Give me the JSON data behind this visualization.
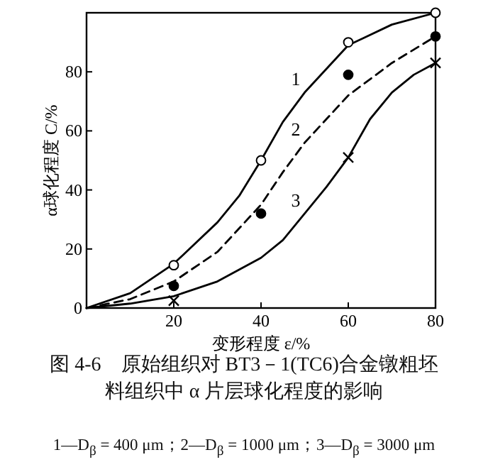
{
  "chart_data": {
    "type": "line",
    "title": "图 4-6　原始组织对 BT3－1(TC6)合金镦粗坯料组织中 α 片层球化程度的影响",
    "xlabel": "变形程度 ε/%",
    "ylabel": "α球化程度 C/%",
    "xlim": [
      0,
      80
    ],
    "ylim": [
      0,
      100
    ],
    "xticks": [
      20,
      40,
      60,
      80
    ],
    "yticks": [
      0,
      20,
      40,
      60,
      80
    ],
    "grid": false,
    "series": [
      {
        "type": "line",
        "name": "1",
        "color": "#000000",
        "line_style": "solid",
        "marker": "none",
        "x": [
          0,
          10,
          20,
          30,
          35,
          40,
          45,
          50,
          55,
          60,
          70,
          80
        ],
        "values": [
          0,
          5,
          15,
          29,
          38,
          50,
          63,
          73,
          81,
          89,
          96,
          100
        ]
      },
      {
        "type": "line",
        "name": "2",
        "color": "#000000",
        "line_style": "dashed",
        "marker": "none",
        "x": [
          0,
          10,
          20,
          30,
          40,
          45,
          50,
          55,
          60,
          70,
          80
        ],
        "values": [
          0,
          3,
          9,
          19,
          35,
          46,
          56,
          64,
          72,
          83,
          92
        ]
      },
      {
        "type": "line",
        "name": "3",
        "color": "#000000",
        "line_style": "solid",
        "marker": "none",
        "x": [
          0,
          10,
          20,
          30,
          40,
          45,
          50,
          55,
          60,
          65,
          70,
          75,
          80
        ],
        "values": [
          0,
          1.5,
          4,
          9,
          17,
          23,
          32,
          41,
          51,
          64,
          73,
          79,
          83
        ]
      },
      {
        "type": "scatter",
        "color": "#ffffff",
        "marker": "circle",
        "x": [
          20,
          40,
          60,
          80
        ],
        "values": [
          14.5,
          50,
          90,
          100
        ]
      },
      {
        "type": "scatter",
        "color": "#000000",
        "marker": "circle",
        "x": [
          20,
          40,
          60,
          80
        ],
        "values": [
          7.5,
          32,
          79,
          92
        ]
      },
      {
        "type": "scatter",
        "color": "#000000",
        "marker": "cross",
        "x": [
          20,
          60,
          80
        ],
        "values": [
          2.5,
          51,
          83
        ]
      }
    ],
    "annotations": [
      "1—D$_{β}$ = 400 μm；2—D$_{β}$ = 1000 μm；3—D$_{β}$ = 3000 μm"
    ]
  }
}
